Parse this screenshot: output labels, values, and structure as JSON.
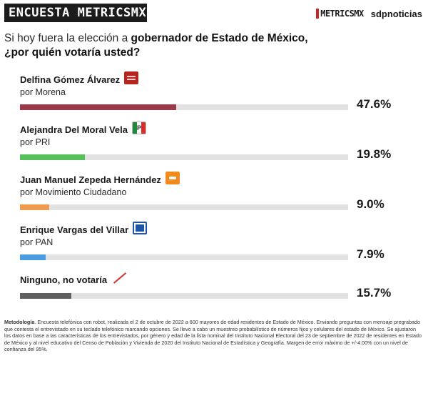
{
  "header": {
    "brand_left": "ENCUESTA METRICSMX",
    "logo_metrics": "METRICSMX",
    "logo_sdp": "sdpnoticias"
  },
  "question": {
    "prefix": "Si hoy fuera la elección a ",
    "bold": "gobernador de Estado de México,",
    "line2": "¿por quién votaría usted?"
  },
  "colors": {
    "morena": "#9b3a4a",
    "pri": "#58c05a",
    "mc": "#ef9c4e",
    "pan": "#4a9be0",
    "ninguno": "#5f5f5f"
  },
  "chart_data": {
    "type": "bar",
    "orientation": "horizontal",
    "unit": "%",
    "xlim": [
      0,
      100
    ],
    "grid": false,
    "categories": [
      "Delfina Gómez Álvarez",
      "Alejandra Del Moral Vela",
      "Juan Manuel Zepeda Hernández",
      "Enrique Vargas del Villar",
      "Ninguno, no votaría"
    ],
    "values": [
      47.6,
      19.8,
      9.0,
      7.9,
      15.7
    ],
    "rows": [
      {
        "name": "Delfina Gómez Álvarez",
        "party": "por Morena",
        "value": 47.6,
        "label": "47.6%",
        "color": "#9b3a4a",
        "icon": "morena-logo-icon"
      },
      {
        "name": "Alejandra Del Moral Vela",
        "party": "por PRI",
        "value": 19.8,
        "label": "19.8%",
        "color": "#58c05a",
        "icon": "pri-logo-icon"
      },
      {
        "name": "Juan Manuel Zepeda Hernández",
        "party": "por Movimiento Ciudadano",
        "value": 9.0,
        "label": "9.0%",
        "color": "#ef9c4e",
        "icon": "mc-logo-icon"
      },
      {
        "name": "Enrique Vargas del Villar",
        "party": "por PAN",
        "value": 7.9,
        "label": "7.9%",
        "color": "#4a9be0",
        "icon": "pan-logo-icon"
      },
      {
        "name": "Ninguno, no votaría",
        "party": "",
        "value": 15.7,
        "label": "15.7%",
        "color": "#5f5f5f",
        "icon": "slash-icon"
      }
    ]
  },
  "methodology": {
    "label": "Metodología",
    "text": ". Encuesta telefónica con robot, realizada el 2 de octubre de 2022 a 600 mayores de edad residentes de Estado de México. Enviando preguntas con mensaje pregrabado que contesta el entrevistado en su teclado telefónico marcando opciones. Se llevo a cabo un muestreo probabilístico de números fijos y celulares del estado de México. Se ajustaron los datos en base a las características de los entrevistados, por género y edad de la lista nominal del Instituto Nacional Electoral del 23 de septiembre de 2022 de residentes en Estado de México y al nivel educativo del Censo de Población y Vivienda de 2020 del Instituto Nacional de Estadística y Geografía. Margen de error máximo de +/-4.00% con un nivel de confianza del 95%."
  }
}
